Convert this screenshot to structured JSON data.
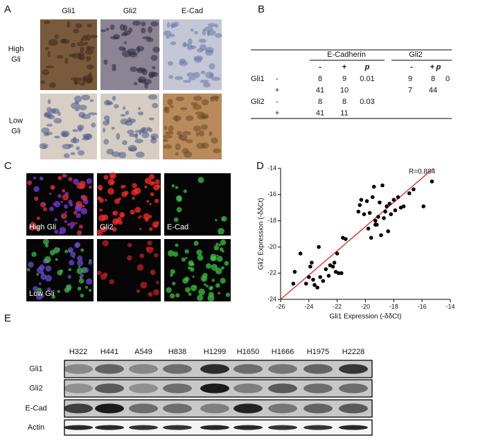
{
  "panels": {
    "A": {
      "label": "A",
      "columns": [
        "Gli1",
        "Gli2",
        "E-Cad"
      ],
      "rows": [
        [
          "High",
          "Gli"
        ],
        [
          "Low",
          "Gli"
        ]
      ]
    },
    "B": {
      "label": "B",
      "groups": [
        "E-Cadherin",
        "Gli2"
      ],
      "subheader": [
        "-",
        "+",
        "p",
        "-",
        "+",
        "p"
      ],
      "rows": [
        [
          "Gli1",
          "-",
          8,
          9,
          0.01,
          9,
          8,
          0
        ],
        [
          null,
          "+",
          41,
          10,
          null,
          7,
          44,
          null
        ],
        [
          "Gli2",
          "-",
          8,
          8,
          0.03,
          null,
          null,
          null
        ],
        [
          null,
          "+",
          41,
          11,
          null,
          null,
          null,
          null
        ]
      ]
    },
    "C": {
      "label": "C",
      "image_labels": [
        "High Gli",
        "Gli2",
        "E-Cad",
        "Low Gli"
      ]
    },
    "E": {
      "label": "E",
      "lanes": [
        "H322",
        "H441",
        "A549",
        "H838",
        "H1299",
        "H1650",
        "H1666",
        "H1975",
        "H2228"
      ],
      "rows": [
        "Gli1",
        "Gli2",
        "E-Cad",
        "Actin"
      ]
    }
  },
  "chart_data": {
    "type": "scatter",
    "panel_label": "D",
    "x_label": "Gli1 Expression (-δδCt)",
    "y_label": "Gli2 Expression (-δδCt)",
    "annotation": "R=0.884",
    "xlim": [
      -26,
      -14
    ],
    "ylim": [
      -24,
      -14
    ],
    "xticks": [
      -26,
      -24,
      -22,
      -20,
      -18,
      -16,
      -14
    ],
    "yticks": [
      -24,
      -22,
      -20,
      -18,
      -16,
      -14
    ],
    "color": "#000000",
    "x": [
      -25.1,
      -25,
      -24.6,
      -24.2,
      -24,
      -23.9,
      -23.8,
      -23.7,
      -23.6,
      -23.4,
      -23.3,
      -23.2,
      -23,
      -22.8,
      -22.6,
      -22.5,
      -22.3,
      -22.2,
      -22.1,
      -22,
      -21.9,
      -21.7,
      -21.6,
      -21.4,
      -20.4,
      -20.3,
      -20.1,
      -19.9,
      -19.8,
      -19.7,
      -19.6,
      -19.5,
      -19.4,
      -19.3,
      -19.2,
      -19.1,
      -19,
      -18.9,
      -18.8,
      -18.7,
      -18.6,
      -18.5,
      -18.4,
      -18.3,
      -18.2,
      -18,
      -17.9,
      -17.7,
      -17.5,
      -17.3,
      -16.9,
      -16.6,
      -15.9,
      -15.3,
      -19.3,
      -20.5
    ],
    "values": [
      -22.8,
      -21.9,
      -20.5,
      -22.8,
      -22.3,
      -21.5,
      -21.2,
      -22.5,
      -22.9,
      -23.1,
      -20,
      -22.3,
      -22.6,
      -21.7,
      -22.2,
      -21.4,
      -21.5,
      -21.2,
      -21.9,
      -20.5,
      -22,
      -22,
      -19.3,
      -19.4,
      -16.8,
      -16.4,
      -17.5,
      -16.5,
      -18.6,
      -17.4,
      -19.3,
      -16.2,
      -15.4,
      -18,
      -18.3,
      -17.7,
      -16.6,
      -19.1,
      -15.3,
      -17.8,
      -17.3,
      -16.9,
      -18.8,
      -16.7,
      -17.5,
      -16.4,
      -17.2,
      -16.2,
      -17,
      -16.9,
      -15.9,
      -15.6,
      -16.9,
      -15,
      -18.3,
      -17.3
    ],
    "fit": {
      "color": "#e8201c",
      "x": [
        -26,
        -15.2
      ],
      "values": [
        -24,
        -14
      ]
    }
  }
}
